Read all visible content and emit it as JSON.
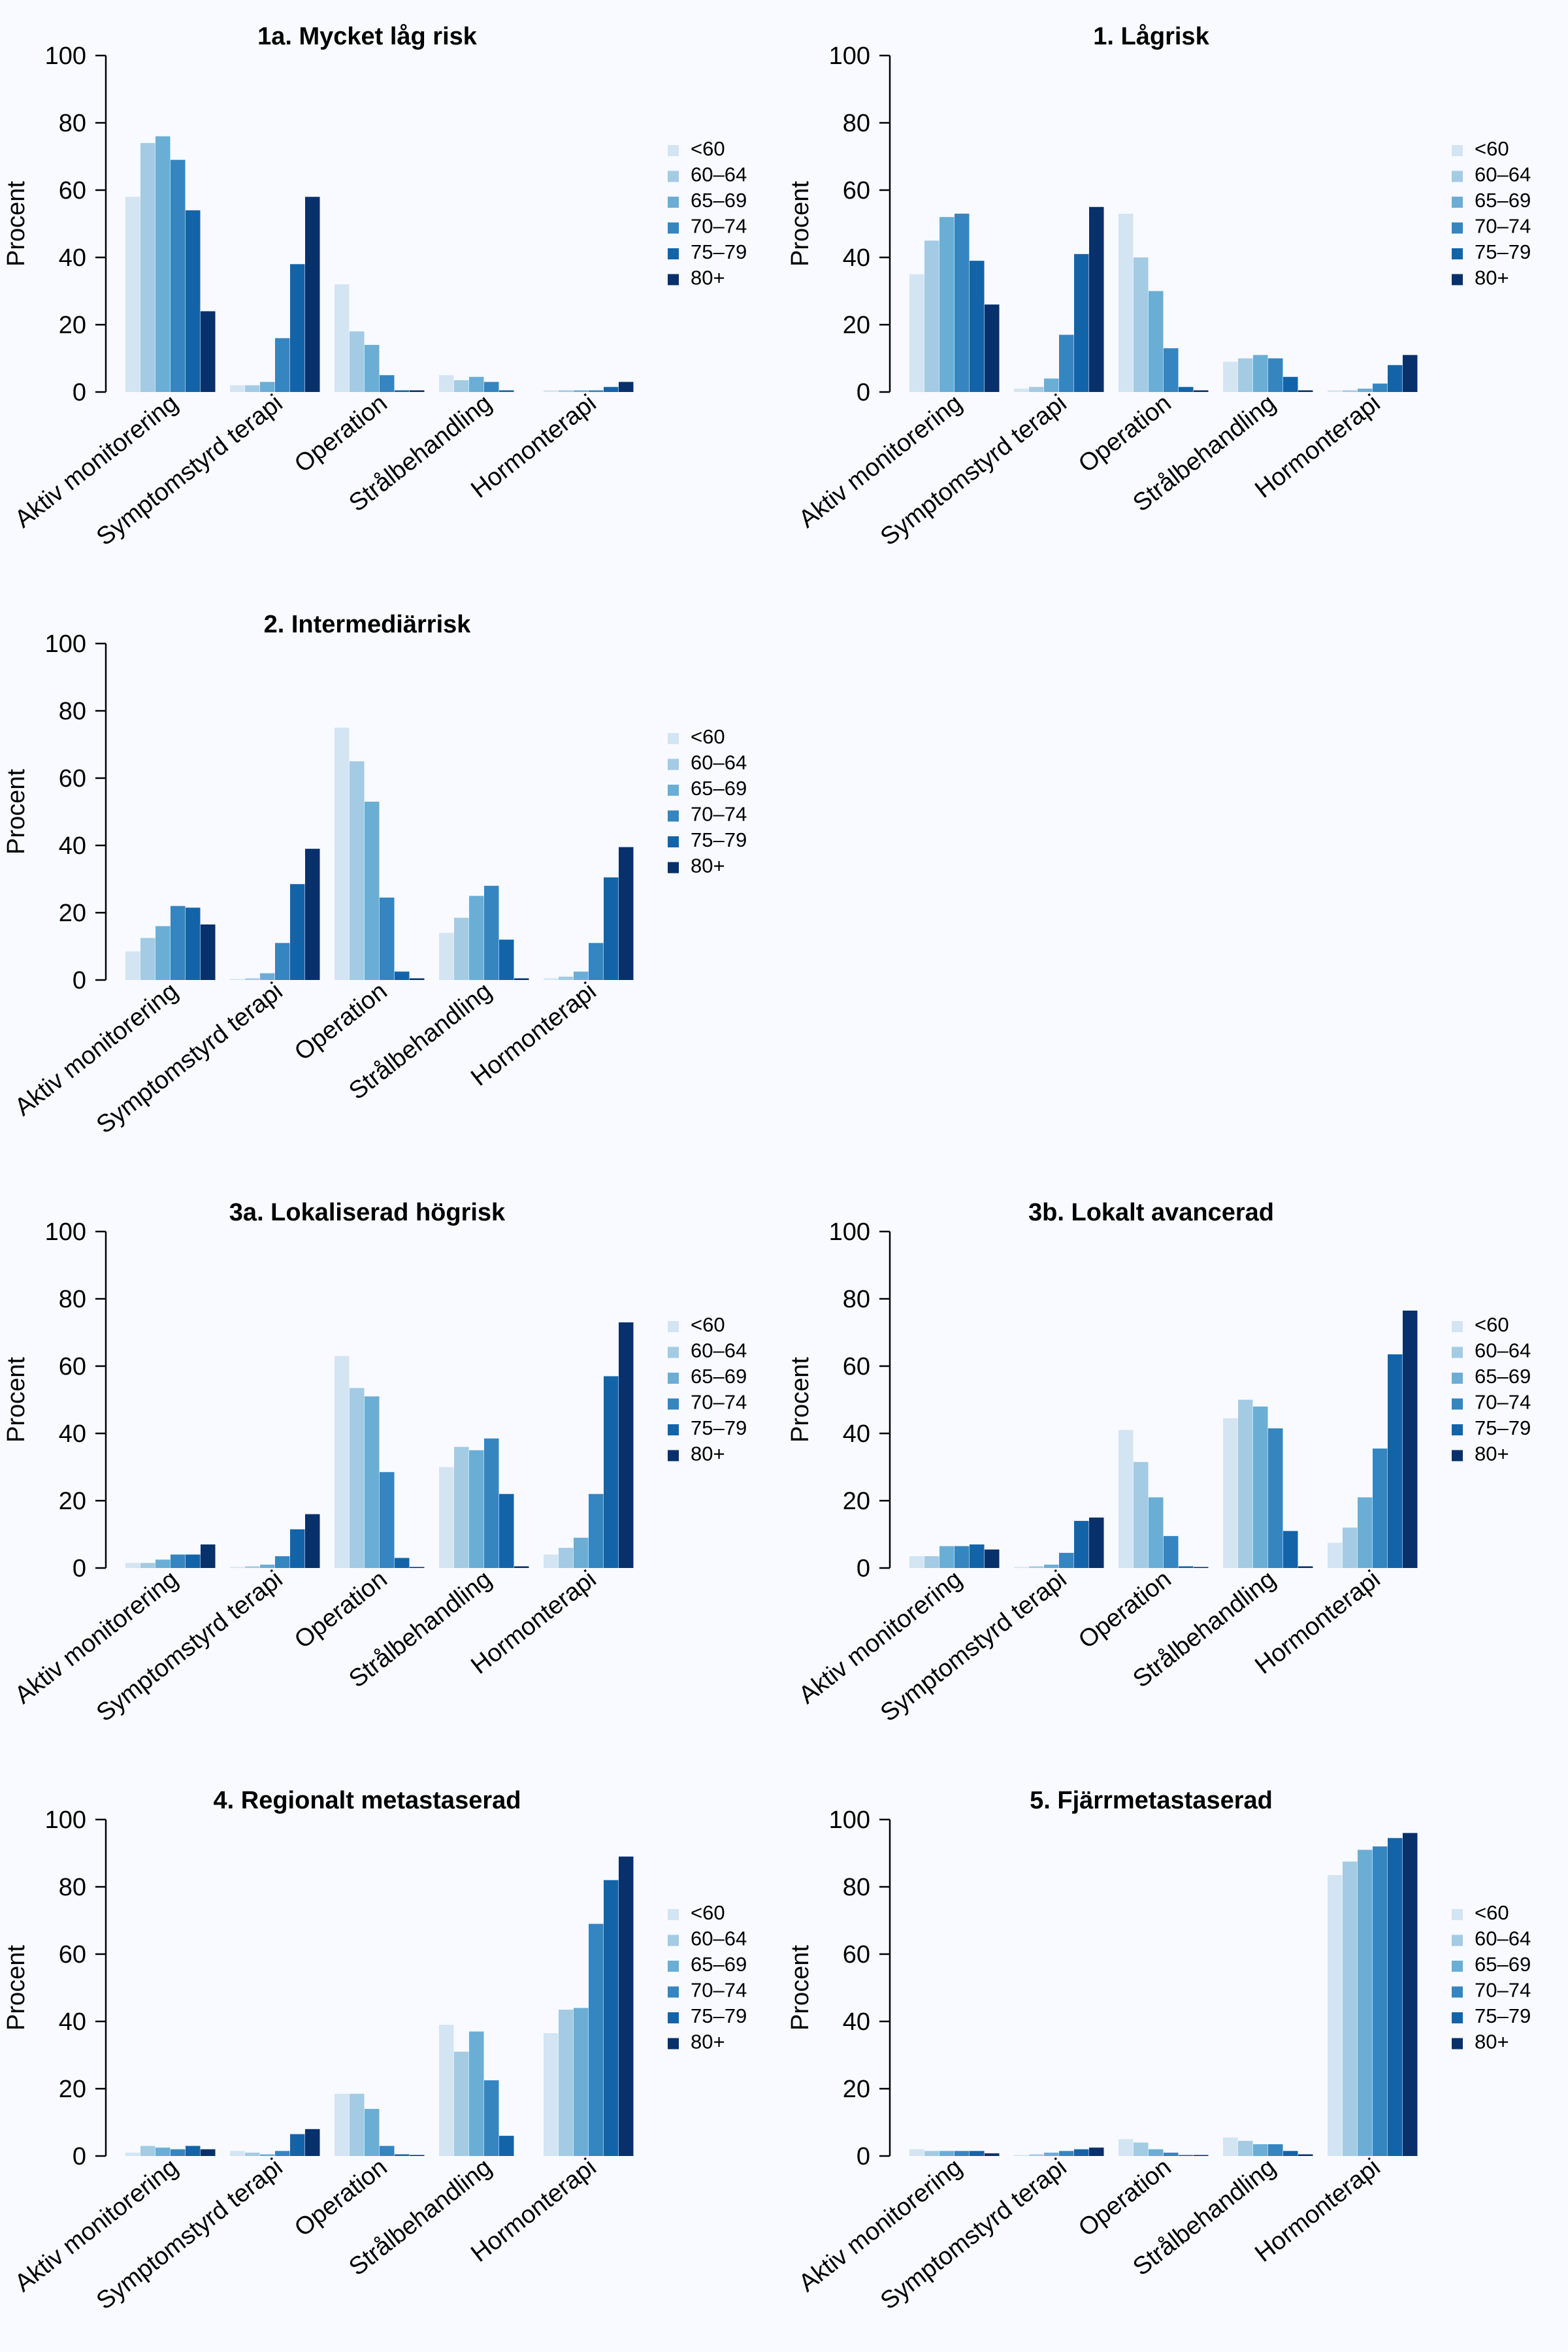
{
  "figure": {
    "ylabel": "Procent",
    "age_groups": [
      "<60",
      "60–64",
      "65–69",
      "70–74",
      "75–79",
      "80+"
    ],
    "colors": [
      "#d3e4f3",
      "#a3cbe3",
      "#6aaed6",
      "#3585c1",
      "#1363a9",
      "#08306b"
    ],
    "background": "#f8faff"
  },
  "chart_data": [
    {
      "type": "bar",
      "title": "1a. Mycket låg risk",
      "ylabel": "Procent",
      "ylim": [
        0,
        100
      ],
      "yticks": [
        0,
        20,
        40,
        60,
        80,
        100
      ],
      "categories": [
        "Aktiv monitorering",
        "Symptomstyrd terapi",
        "Operation",
        "Strålbehandling",
        "Hormonterapi"
      ],
      "legend": "right",
      "series": [
        {
          "name": "<60",
          "values": [
            58,
            2,
            32,
            5,
            0.5
          ]
        },
        {
          "name": "60–64",
          "values": [
            74,
            2,
            18,
            3.5,
            0.5
          ]
        },
        {
          "name": "65–69",
          "values": [
            76,
            3,
            14,
            4.5,
            0.5
          ]
        },
        {
          "name": "70–74",
          "values": [
            69,
            16,
            5,
            3,
            0.5
          ]
        },
        {
          "name": "75–79",
          "values": [
            54,
            38,
            0.5,
            0.5,
            1.5
          ]
        },
        {
          "name": "80+",
          "values": [
            24,
            58,
            0.5,
            0,
            3
          ]
        }
      ]
    },
    {
      "type": "bar",
      "title": "1. Lågrisk",
      "ylabel": "Procent",
      "ylim": [
        0,
        100
      ],
      "yticks": [
        0,
        20,
        40,
        60,
        80,
        100
      ],
      "categories": [
        "Aktiv monitorering",
        "Symptomstyrd terapi",
        "Operation",
        "Strålbehandling",
        "Hormonterapi"
      ],
      "legend": "right",
      "series": [
        {
          "name": "<60",
          "values": [
            35,
            1,
            53,
            9,
            0.5
          ]
        },
        {
          "name": "60–64",
          "values": [
            45,
            1.5,
            40,
            10,
            0.5
          ]
        },
        {
          "name": "65–69",
          "values": [
            52,
            4,
            30,
            11,
            1
          ]
        },
        {
          "name": "70–74",
          "values": [
            53,
            17,
            13,
            10,
            2.5
          ]
        },
        {
          "name": "75–79",
          "values": [
            39,
            41,
            1.5,
            4.5,
            8
          ]
        },
        {
          "name": "80+",
          "values": [
            26,
            55,
            0.5,
            0.5,
            11
          ]
        }
      ]
    },
    {
      "type": "bar",
      "title": "2. Intermediärrisk",
      "ylabel": "Procent",
      "ylim": [
        0,
        100
      ],
      "yticks": [
        0,
        20,
        40,
        60,
        80,
        100
      ],
      "categories": [
        "Aktiv monitorering",
        "Symptomstyrd terapi",
        "Operation",
        "Strålbehandling",
        "Hormonterapi"
      ],
      "legend": "right",
      "series": [
        {
          "name": "<60",
          "values": [
            8.5,
            0.3,
            75,
            14,
            0.5
          ]
        },
        {
          "name": "60–64",
          "values": [
            12.5,
            0.5,
            65,
            18.5,
            1
          ]
        },
        {
          "name": "65–69",
          "values": [
            16,
            2,
            53,
            25,
            2.5
          ]
        },
        {
          "name": "70–74",
          "values": [
            22,
            11,
            24.5,
            28,
            11
          ]
        },
        {
          "name": "75–79",
          "values": [
            21.5,
            28.5,
            2.5,
            12,
            30.5
          ]
        },
        {
          "name": "80+",
          "values": [
            16.5,
            39,
            0.5,
            0.5,
            39.5
          ]
        }
      ]
    },
    {
      "type": "bar",
      "title": "3a. Lokaliserad högrisk",
      "ylabel": "Procent",
      "ylim": [
        0,
        100
      ],
      "yticks": [
        0,
        20,
        40,
        60,
        80,
        100
      ],
      "categories": [
        "Aktiv monitorering",
        "Symptomstyrd terapi",
        "Operation",
        "Strålbehandling",
        "Hormonterapi"
      ],
      "legend": "right",
      "series": [
        {
          "name": "<60",
          "values": [
            1.5,
            0.3,
            63,
            30,
            4
          ]
        },
        {
          "name": "60–64",
          "values": [
            1.5,
            0.5,
            53.5,
            36,
            6
          ]
        },
        {
          "name": "65–69",
          "values": [
            2.5,
            1,
            51,
            35,
            9
          ]
        },
        {
          "name": "70–74",
          "values": [
            4,
            3.5,
            28.5,
            38.5,
            22
          ]
        },
        {
          "name": "75–79",
          "values": [
            4,
            11.5,
            3,
            22,
            57
          ]
        },
        {
          "name": "80+",
          "values": [
            7,
            16,
            0.3,
            0.5,
            73
          ]
        }
      ]
    },
    {
      "type": "bar",
      "title": "3b. Lokalt avancerad",
      "ylabel": "Procent",
      "ylim": [
        0,
        100
      ],
      "yticks": [
        0,
        20,
        40,
        60,
        80,
        100
      ],
      "categories": [
        "Aktiv monitorering",
        "Symptomstyrd terapi",
        "Operation",
        "Strålbehandling",
        "Hormonterapi"
      ],
      "legend": "right",
      "series": [
        {
          "name": "<60",
          "values": [
            3.5,
            0.3,
            41,
            44.5,
            7.5
          ]
        },
        {
          "name": "60–64",
          "values": [
            3.5,
            0.5,
            31.5,
            50,
            12
          ]
        },
        {
          "name": "65–69",
          "values": [
            6.5,
            1,
            21,
            48,
            21
          ]
        },
        {
          "name": "70–74",
          "values": [
            6.5,
            4.5,
            9.5,
            41.5,
            35.5
          ]
        },
        {
          "name": "75–79",
          "values": [
            7,
            14,
            0.5,
            11,
            63.5
          ]
        },
        {
          "name": "80+",
          "values": [
            5.5,
            15,
            0.3,
            0.5,
            76.5
          ]
        }
      ]
    },
    {
      "type": "bar",
      "title": "4. Regionalt metastaserad",
      "ylabel": "Procent",
      "ylim": [
        0,
        100
      ],
      "yticks": [
        0,
        20,
        40,
        60,
        80,
        100
      ],
      "categories": [
        "Aktiv monitorering",
        "Symptomstyrd terapi",
        "Operation",
        "Strålbehandling",
        "Hormonterapi"
      ],
      "legend": "right",
      "series": [
        {
          "name": "<60",
          "values": [
            1,
            1.5,
            18.5,
            39,
            36.5
          ]
        },
        {
          "name": "60–64",
          "values": [
            3,
            1,
            18.5,
            31,
            43.5
          ]
        },
        {
          "name": "65–69",
          "values": [
            2.5,
            0.5,
            14,
            37,
            44
          ]
        },
        {
          "name": "70–74",
          "values": [
            2,
            1.5,
            3,
            22.5,
            69
          ]
        },
        {
          "name": "75–79",
          "values": [
            3,
            6.5,
            0.5,
            6,
            82
          ]
        },
        {
          "name": "80+",
          "values": [
            2,
            8,
            0.3,
            0,
            89
          ]
        }
      ]
    },
    {
      "type": "bar",
      "title": "5. Fjärrmetastaserad",
      "ylabel": "Procent",
      "ylim": [
        0,
        100
      ],
      "yticks": [
        0,
        20,
        40,
        60,
        80,
        100
      ],
      "categories": [
        "Aktiv monitorering",
        "Symptomstyrd terapi",
        "Operation",
        "Strålbehandling",
        "Hormonterapi"
      ],
      "legend": "right",
      "series": [
        {
          "name": "<60",
          "values": [
            2,
            0.3,
            5,
            5.5,
            83.5
          ]
        },
        {
          "name": "60–64",
          "values": [
            1.5,
            0.5,
            4,
            4.5,
            87.5
          ]
        },
        {
          "name": "65–69",
          "values": [
            1.5,
            1,
            2,
            3.5,
            91
          ]
        },
        {
          "name": "70–74",
          "values": [
            1.5,
            1.5,
            1,
            3.5,
            92
          ]
        },
        {
          "name": "75–79",
          "values": [
            1.5,
            2,
            0.3,
            1.5,
            94.5
          ]
        },
        {
          "name": "80+",
          "values": [
            0.8,
            2.5,
            0.3,
            0.5,
            96
          ]
        }
      ]
    }
  ]
}
